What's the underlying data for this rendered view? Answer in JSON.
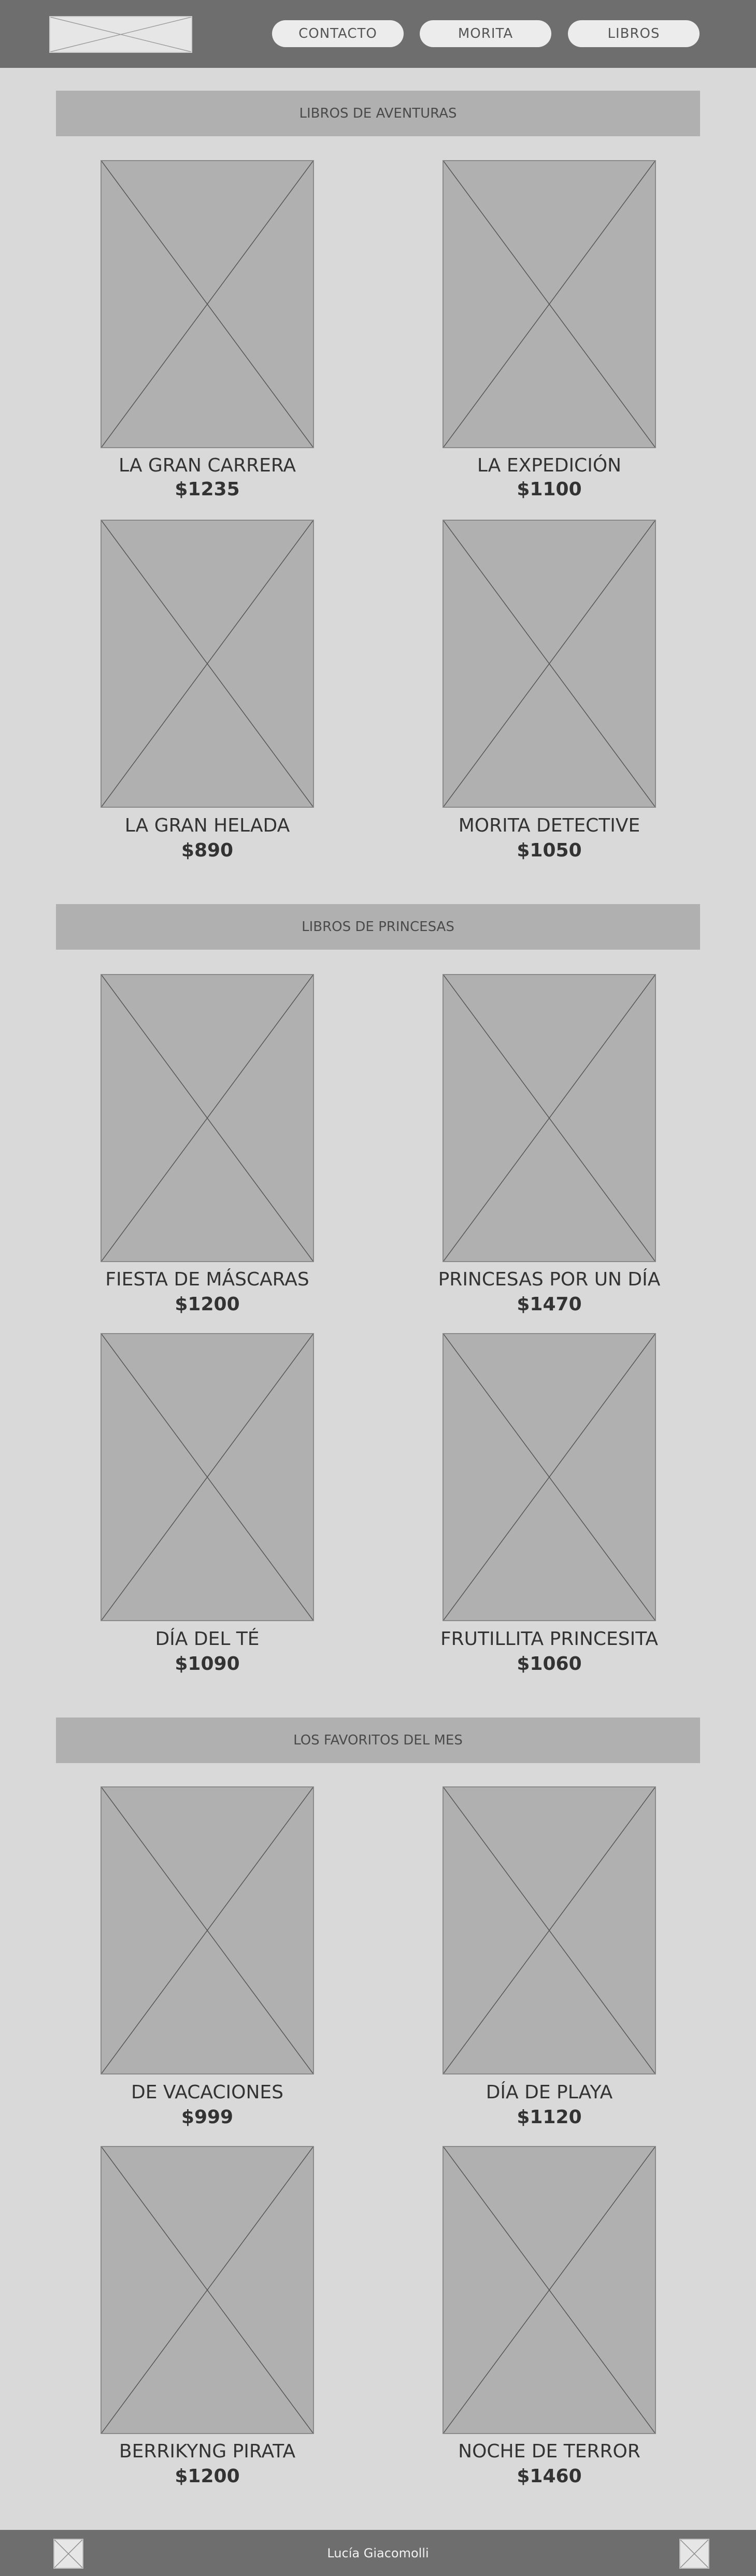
{
  "nav": {
    "contacto": "CONTACTO",
    "morita": "MORITA",
    "libros": "LIBROS"
  },
  "sections": [
    {
      "title": "LIBROS DE AVENTURAS",
      "books": [
        {
          "title": "LA GRAN CARRERA",
          "price": "$1235"
        },
        {
          "title": "LA EXPEDICIÓN",
          "price": "$1100"
        },
        {
          "title": "LA GRAN HELADA",
          "price": "$890"
        },
        {
          "title": "MORITA DETECTIVE",
          "price": "$1050"
        }
      ]
    },
    {
      "title": "LIBROS DE PRINCESAS",
      "books": [
        {
          "title": "FIESTA DE MÁSCARAS",
          "price": "$1200"
        },
        {
          "title": "PRINCESAS POR UN DÍA",
          "price": "$1470"
        },
        {
          "title": "DÍA DEL TÉ",
          "price": "$1090"
        },
        {
          "title": "FRUTILLITA PRINCESITA",
          "price": "$1060"
        }
      ]
    },
    {
      "title": "LOS FAVORITOS DEL MES",
      "books": [
        {
          "title": "DE VACACIONES",
          "price": "$999"
        },
        {
          "title": "DÍA DE PLAYA",
          "price": "$1120"
        },
        {
          "title": "BERRIKYNG PIRATA",
          "price": "$1200"
        },
        {
          "title": "NOCHE DE TERROR",
          "price": "$1460"
        }
      ]
    }
  ],
  "footer": {
    "author": "Lucía Giacomolli"
  },
  "colors": {
    "header_bg": "#6e6e6e",
    "page_bg": "#d9d9d9",
    "banner_bg": "#b0b0b0",
    "placeholder_bg": "#b0b0b0",
    "button_bg": "#ececec"
  }
}
